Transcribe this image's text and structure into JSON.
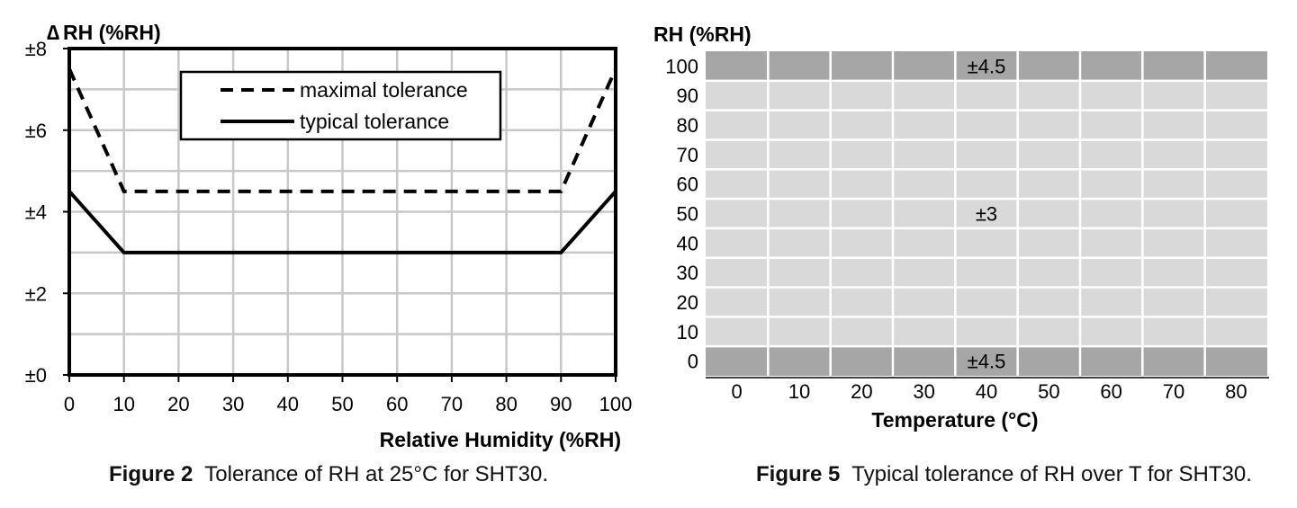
{
  "chart_data": [
    {
      "type": "line",
      "ylabel_prefix": "∆",
      "ylabel": "RH (%RH)",
      "xlabel": "Relative Humidity (%RH)",
      "xlim": [
        0,
        100
      ],
      "ylim": [
        0,
        8
      ],
      "x_ticks": [
        "0",
        "10",
        "20",
        "30",
        "40",
        "50",
        "60",
        "70",
        "80",
        "90",
        "100"
      ],
      "y_ticks": [
        {
          "value": 0,
          "label": "±0"
        },
        {
          "value": 2,
          "label": "±2"
        },
        {
          "value": 4,
          "label": "±4"
        },
        {
          "value": 6,
          "label": "±6"
        },
        {
          "value": 8,
          "label": "±8"
        }
      ],
      "grid": true,
      "legend_position": "top-center",
      "series": [
        {
          "name": "maximal tolerance",
          "style": "dashed",
          "color": "#000000",
          "x": [
            0,
            10,
            90,
            100
          ],
          "y": [
            7.5,
            4.5,
            4.5,
            7.5
          ]
        },
        {
          "name": "typical tolerance",
          "style": "solid",
          "color": "#000000",
          "x": [
            0,
            10,
            90,
            100
          ],
          "y": [
            4.5,
            3,
            3,
            4.5
          ]
        }
      ]
    },
    {
      "type": "heatmap",
      "ylabel": "RH (%RH)",
      "xlabel": "Temperature (°C)",
      "x_ticks": [
        "0",
        "10",
        "20",
        "30",
        "40",
        "50",
        "60",
        "70",
        "80"
      ],
      "y_ticks": [
        "100",
        "90",
        "80",
        "70",
        "60",
        "50",
        "40",
        "30",
        "20",
        "10",
        "0"
      ],
      "regions": [
        {
          "label": "±4.5",
          "rh_range": [
            95,
            100
          ],
          "color": "#a6a6a6"
        },
        {
          "label": "±3",
          "rh_range": [
            5,
            95
          ],
          "color": "#d9d9d9"
        },
        {
          "label": "±4.5",
          "rh_range": [
            0,
            5
          ],
          "color": "#a6a6a6"
        }
      ]
    }
  ],
  "captions": {
    "fig2": {
      "label": "Figure 2",
      "text": "Tolerance of RH at 25°C for SHT30."
    },
    "fig5": {
      "label": "Figure 5",
      "text": "Typical tolerance of RH over T for SHT30."
    }
  }
}
